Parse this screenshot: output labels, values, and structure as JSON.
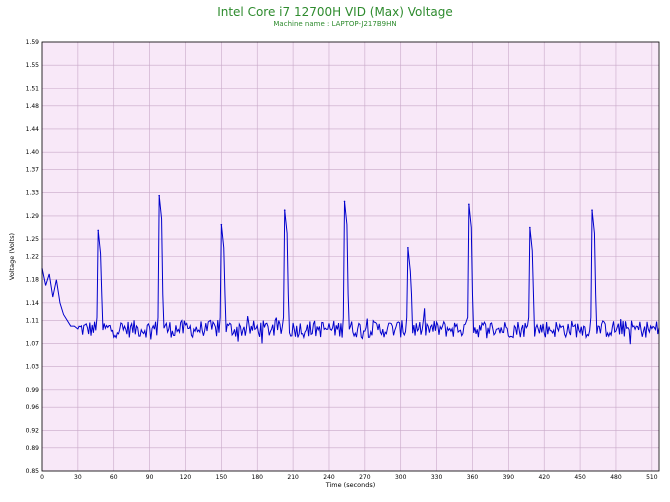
{
  "chart_data": {
    "type": "line",
    "title": "Intel Core i7 12700H VID (Max) Voltage",
    "subtitle": "Machine name : LAPTOP-J217B9HN",
    "xlabel": "Time (seconds)",
    "ylabel": "Voltage (Volts)",
    "xlim": [
      0,
      516
    ],
    "ylim": [
      0.85,
      1.59
    ],
    "x_ticks": [
      0,
      30,
      60,
      90,
      120,
      150,
      180,
      210,
      240,
      270,
      300,
      330,
      360,
      390,
      420,
      450,
      480,
      510
    ],
    "y_ticks": [
      "0.85",
      "0.89",
      "0.92",
      "0.96",
      "0.99",
      "1.03",
      "1.07",
      "1.11",
      "1.14",
      "1.18",
      "1.22",
      "1.25",
      "1.29",
      "1.33",
      "1.37",
      "1.40",
      "1.44",
      "1.48",
      "1.51",
      "1.55",
      "1.59"
    ],
    "grid": true,
    "colors": {
      "background": "#f8e8f8",
      "grid": "#c8a8c8",
      "line": "#0000cc",
      "title": "#2e8b2e"
    },
    "series": [
      {
        "baseline": 1.095,
        "initial_segment": [
          [
            0,
            1.2
          ],
          [
            3,
            1.17
          ],
          [
            6,
            1.19
          ],
          [
            9,
            1.15
          ],
          [
            12,
            1.18
          ],
          [
            15,
            1.14
          ],
          [
            18,
            1.12
          ],
          [
            21,
            1.11
          ],
          [
            24,
            1.1
          ],
          [
            27,
            1.1
          ],
          [
            30,
            1.095
          ]
        ],
        "peaks": [
          {
            "x": 47,
            "y": 1.265
          },
          {
            "x": 98,
            "y": 1.325
          },
          {
            "x": 150,
            "y": 1.275
          },
          {
            "x": 203,
            "y": 1.3
          },
          {
            "x": 253,
            "y": 1.315
          },
          {
            "x": 306,
            "y": 1.235
          },
          {
            "x": 357,
            "y": 1.31
          },
          {
            "x": 408,
            "y": 1.27
          },
          {
            "x": 460,
            "y": 1.3
          }
        ]
      }
    ]
  }
}
